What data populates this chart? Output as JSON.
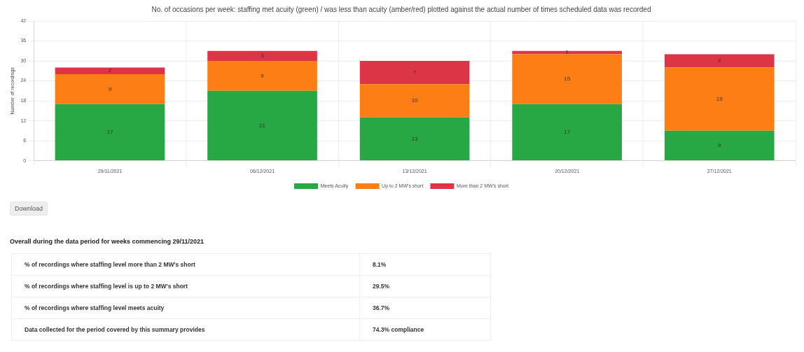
{
  "chart_data": {
    "type": "bar",
    "title": "No. of occasions per week: staffing met acuity (green) / was less than acuity (amber/red) plotted against the actual number of times scheduled data was recorded",
    "ylabel": "Number of recordings",
    "categories": [
      "29/11/2021",
      "06/12/2021",
      "13/12/2021",
      "20/12/2021",
      "27/12/2021"
    ],
    "series": [
      {
        "name": "Meets Acuity",
        "color": "#28a745",
        "values": [
          17,
          21,
          13,
          17,
          9
        ]
      },
      {
        "name": "Up to 2 MW's short",
        "color": "#fd7e14",
        "values": [
          9,
          9,
          10,
          15,
          19
        ]
      },
      {
        "name": "More than 2 MW's short",
        "color": "#dc3545",
        "values": [
          2,
          3,
          7,
          1,
          4
        ]
      }
    ],
    "stacked": true,
    "ylim": [
      0,
      42
    ],
    "yticks": [
      0,
      6,
      12,
      18,
      24,
      30,
      36,
      42
    ],
    "grid": true,
    "legend": "bottom",
    "data_labels": true,
    "annotations": [
      "Download",
      "Overall during the data period for weeks commencing 29/11/2021",
      "% of recordings where staffing level more than 2 MW's short",
      "8.1%",
      "% of recordings where staffing level is up to 2 MW's short",
      "29.5%",
      "% of recordings where staffing level meets acuity",
      "36.7%",
      "Data collected for the period covered by this summary provides",
      "74.3% compliance"
    ]
  }
}
